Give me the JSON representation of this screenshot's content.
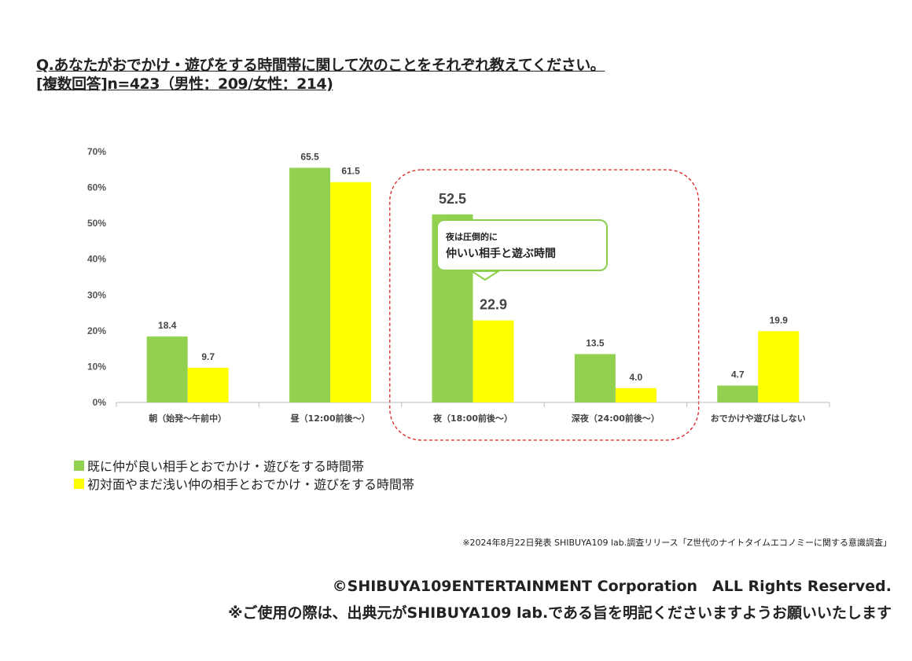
{
  "title": {
    "line1": "Q.あなたがおでかけ・遊びをする時間帯に関して次のことをそれぞれ教えてください。",
    "line2": "[複数回答]n=423（男性：209/女性：214)"
  },
  "chart_data": {
    "type": "bar",
    "categories": [
      "朝（始発～午前中）",
      "昼（12:00前後～）",
      "夜（18:00前後～）",
      "深夜（24:00前後～）",
      "おでかけや遊びはしない"
    ],
    "series": [
      {
        "name": "既に仲が良い相手とおでかけ・遊びをする時間帯",
        "color": "#92d050",
        "values": [
          18.4,
          65.5,
          52.5,
          13.5,
          4.7
        ]
      },
      {
        "name": "初対面やまだ浅い仲の相手とおでかけ・遊びをする時間帯",
        "color": "#ffff00",
        "values": [
          9.7,
          61.5,
          22.9,
          4.0,
          19.9
        ]
      }
    ],
    "ylim": [
      0,
      70
    ],
    "yticks": [
      "0%",
      "10%",
      "20%",
      "30%",
      "40%",
      "50%",
      "60%",
      "70%"
    ],
    "highlight_categories": [
      2,
      3
    ],
    "legend_position": "bottom-left",
    "annotation": {
      "line1": "夜は圧倒的に",
      "line2": "仲いい相手と遊ぶ時間"
    }
  },
  "source": "※2024年8月22日発表 SHIBUYA109 lab.調査リリース「Z世代のナイトタイムエコノミーに関する意識調査」",
  "copyright": "©SHIBUYA109ENTERTAINMENT Corporation　ALL Rights Reserved.",
  "usage_note": "※ご使用の際は、出典元がSHIBUYA109 lab.である旨を明記くださいますようお願いいたします"
}
